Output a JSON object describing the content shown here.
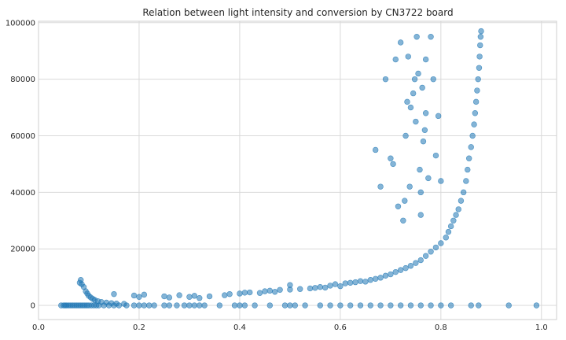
{
  "chart_data": {
    "type": "scatter",
    "title": "Relation between light intensity and conversion by CN3722 board",
    "xlabel": "",
    "ylabel": "",
    "xlim": [
      0.0,
      1.03
    ],
    "ylim": [
      -5000,
      100500
    ],
    "grid": true,
    "xticks": [
      0.0,
      0.2,
      0.4,
      0.6,
      0.8,
      1.0
    ],
    "xtick_labels": [
      "0.0",
      "0.2",
      "0.4",
      "0.6",
      "0.8",
      "1.0"
    ],
    "yticks": [
      0,
      20000,
      40000,
      60000,
      80000,
      100000
    ],
    "ytick_labels": [
      "0",
      "20000",
      "40000",
      "60000",
      "80000",
      "100000"
    ],
    "point_color": "#1f77b4",
    "point_alpha": 0.55,
    "series": [
      {
        "points": [
          [
            0.045,
            0
          ],
          [
            0.05,
            0
          ],
          [
            0.053,
            0
          ],
          [
            0.056,
            0
          ],
          [
            0.06,
            0
          ],
          [
            0.064,
            0
          ],
          [
            0.068,
            0
          ],
          [
            0.072,
            0
          ],
          [
            0.076,
            0
          ],
          [
            0.08,
            0
          ],
          [
            0.084,
            0
          ],
          [
            0.088,
            0
          ],
          [
            0.092,
            0
          ],
          [
            0.096,
            0
          ],
          [
            0.1,
            0
          ],
          [
            0.105,
            0
          ],
          [
            0.11,
            0
          ],
          [
            0.115,
            0
          ],
          [
            0.12,
            0
          ],
          [
            0.13,
            0
          ],
          [
            0.14,
            0
          ],
          [
            0.15,
            0
          ],
          [
            0.16,
            0
          ],
          [
            0.175,
            0
          ],
          [
            0.19,
            0
          ],
          [
            0.2,
            0
          ],
          [
            0.21,
            0
          ],
          [
            0.22,
            0
          ],
          [
            0.23,
            0
          ],
          [
            0.25,
            0
          ],
          [
            0.26,
            0
          ],
          [
            0.275,
            0
          ],
          [
            0.29,
            0
          ],
          [
            0.3,
            0
          ],
          [
            0.31,
            0
          ],
          [
            0.32,
            0
          ],
          [
            0.33,
            0
          ],
          [
            0.36,
            0
          ],
          [
            0.39,
            0
          ],
          [
            0.4,
            0
          ],
          [
            0.41,
            0
          ],
          [
            0.43,
            0
          ],
          [
            0.46,
            0
          ],
          [
            0.49,
            0
          ],
          [
            0.5,
            0
          ],
          [
            0.51,
            0
          ],
          [
            0.53,
            0
          ],
          [
            0.56,
            0
          ],
          [
            0.58,
            0
          ],
          [
            0.6,
            0
          ],
          [
            0.62,
            0
          ],
          [
            0.64,
            0
          ],
          [
            0.66,
            0
          ],
          [
            0.68,
            0
          ],
          [
            0.7,
            0
          ],
          [
            0.72,
            0
          ],
          [
            0.74,
            0
          ],
          [
            0.76,
            0
          ],
          [
            0.78,
            0
          ],
          [
            0.8,
            0
          ],
          [
            0.82,
            0
          ],
          [
            0.86,
            0
          ],
          [
            0.875,
            0
          ],
          [
            0.935,
            0
          ],
          [
            0.99,
            0
          ],
          [
            0.082,
            8000
          ],
          [
            0.084,
            9000
          ],
          [
            0.086,
            7500
          ],
          [
            0.09,
            6500
          ],
          [
            0.094,
            5000
          ],
          [
            0.097,
            4200
          ],
          [
            0.1,
            3400
          ],
          [
            0.104,
            2800
          ],
          [
            0.108,
            2300
          ],
          [
            0.112,
            1900
          ],
          [
            0.118,
            1500
          ],
          [
            0.125,
            1200
          ],
          [
            0.135,
            1000
          ],
          [
            0.145,
            800
          ],
          [
            0.155,
            650
          ],
          [
            0.17,
            550
          ],
          [
            0.15,
            4000
          ],
          [
            0.19,
            3500
          ],
          [
            0.2,
            3000
          ],
          [
            0.21,
            3800
          ],
          [
            0.25,
            3200
          ],
          [
            0.26,
            2800
          ],
          [
            0.28,
            3600
          ],
          [
            0.3,
            3000
          ],
          [
            0.31,
            3400
          ],
          [
            0.32,
            2600
          ],
          [
            0.34,
            3200
          ],
          [
            0.37,
            3600
          ],
          [
            0.38,
            4000
          ],
          [
            0.4,
            4200
          ],
          [
            0.41,
            4500
          ],
          [
            0.42,
            4600
          ],
          [
            0.44,
            4400
          ],
          [
            0.45,
            5000
          ],
          [
            0.46,
            5200
          ],
          [
            0.47,
            4800
          ],
          [
            0.48,
            5500
          ],
          [
            0.5,
            5600
          ],
          [
            0.5,
            7200
          ],
          [
            0.52,
            5800
          ],
          [
            0.54,
            6000
          ],
          [
            0.55,
            6200
          ],
          [
            0.56,
            6500
          ],
          [
            0.57,
            6300
          ],
          [
            0.58,
            7000
          ],
          [
            0.59,
            7500
          ],
          [
            0.6,
            6800
          ],
          [
            0.61,
            7800
          ],
          [
            0.62,
            8000
          ],
          [
            0.63,
            8200
          ],
          [
            0.64,
            8600
          ],
          [
            0.65,
            8400
          ],
          [
            0.66,
            9000
          ],
          [
            0.67,
            9400
          ],
          [
            0.68,
            9800
          ],
          [
            0.69,
            10500
          ],
          [
            0.7,
            11000
          ],
          [
            0.71,
            11800
          ],
          [
            0.72,
            12500
          ],
          [
            0.73,
            13200
          ],
          [
            0.74,
            14000
          ],
          [
            0.75,
            15000
          ],
          [
            0.76,
            16000
          ],
          [
            0.77,
            17500
          ],
          [
            0.78,
            19000
          ],
          [
            0.79,
            20500
          ],
          [
            0.8,
            22000
          ],
          [
            0.81,
            24000
          ],
          [
            0.815,
            26000
          ],
          [
            0.82,
            28000
          ],
          [
            0.825,
            30000
          ],
          [
            0.83,
            32000
          ],
          [
            0.835,
            34000
          ],
          [
            0.84,
            37000
          ],
          [
            0.845,
            40000
          ],
          [
            0.85,
            44000
          ],
          [
            0.853,
            48000
          ],
          [
            0.856,
            52000
          ],
          [
            0.86,
            56000
          ],
          [
            0.863,
            60000
          ],
          [
            0.866,
            64000
          ],
          [
            0.868,
            68000
          ],
          [
            0.87,
            72000
          ],
          [
            0.872,
            76000
          ],
          [
            0.874,
            80000
          ],
          [
            0.876,
            84000
          ],
          [
            0.877,
            88000
          ],
          [
            0.878,
            92000
          ],
          [
            0.879,
            95000
          ],
          [
            0.88,
            97000
          ],
          [
            0.67,
            55000
          ],
          [
            0.68,
            42000
          ],
          [
            0.69,
            80000
          ],
          [
            0.7,
            52000
          ],
          [
            0.705,
            50000
          ],
          [
            0.71,
            87000
          ],
          [
            0.715,
            35000
          ],
          [
            0.72,
            93000
          ],
          [
            0.725,
            30000
          ],
          [
            0.728,
            37000
          ],
          [
            0.73,
            60000
          ],
          [
            0.733,
            72000
          ],
          [
            0.735,
            88000
          ],
          [
            0.738,
            42000
          ],
          [
            0.74,
            70000
          ],
          [
            0.745,
            75000
          ],
          [
            0.748,
            80000
          ],
          [
            0.75,
            65000
          ],
          [
            0.752,
            95000
          ],
          [
            0.755,
            82000
          ],
          [
            0.758,
            48000
          ],
          [
            0.76,
            40000
          ],
          [
            0.763,
            77000
          ],
          [
            0.765,
            58000
          ],
          [
            0.768,
            62000
          ],
          [
            0.77,
            68000
          ],
          [
            0.775,
            45000
          ],
          [
            0.78,
            95000
          ],
          [
            0.785,
            80000
          ],
          [
            0.79,
            53000
          ],
          [
            0.795,
            67000
          ],
          [
            0.8,
            44000
          ],
          [
            0.76,
            32000
          ],
          [
            0.77,
            87000
          ]
        ]
      }
    ]
  }
}
